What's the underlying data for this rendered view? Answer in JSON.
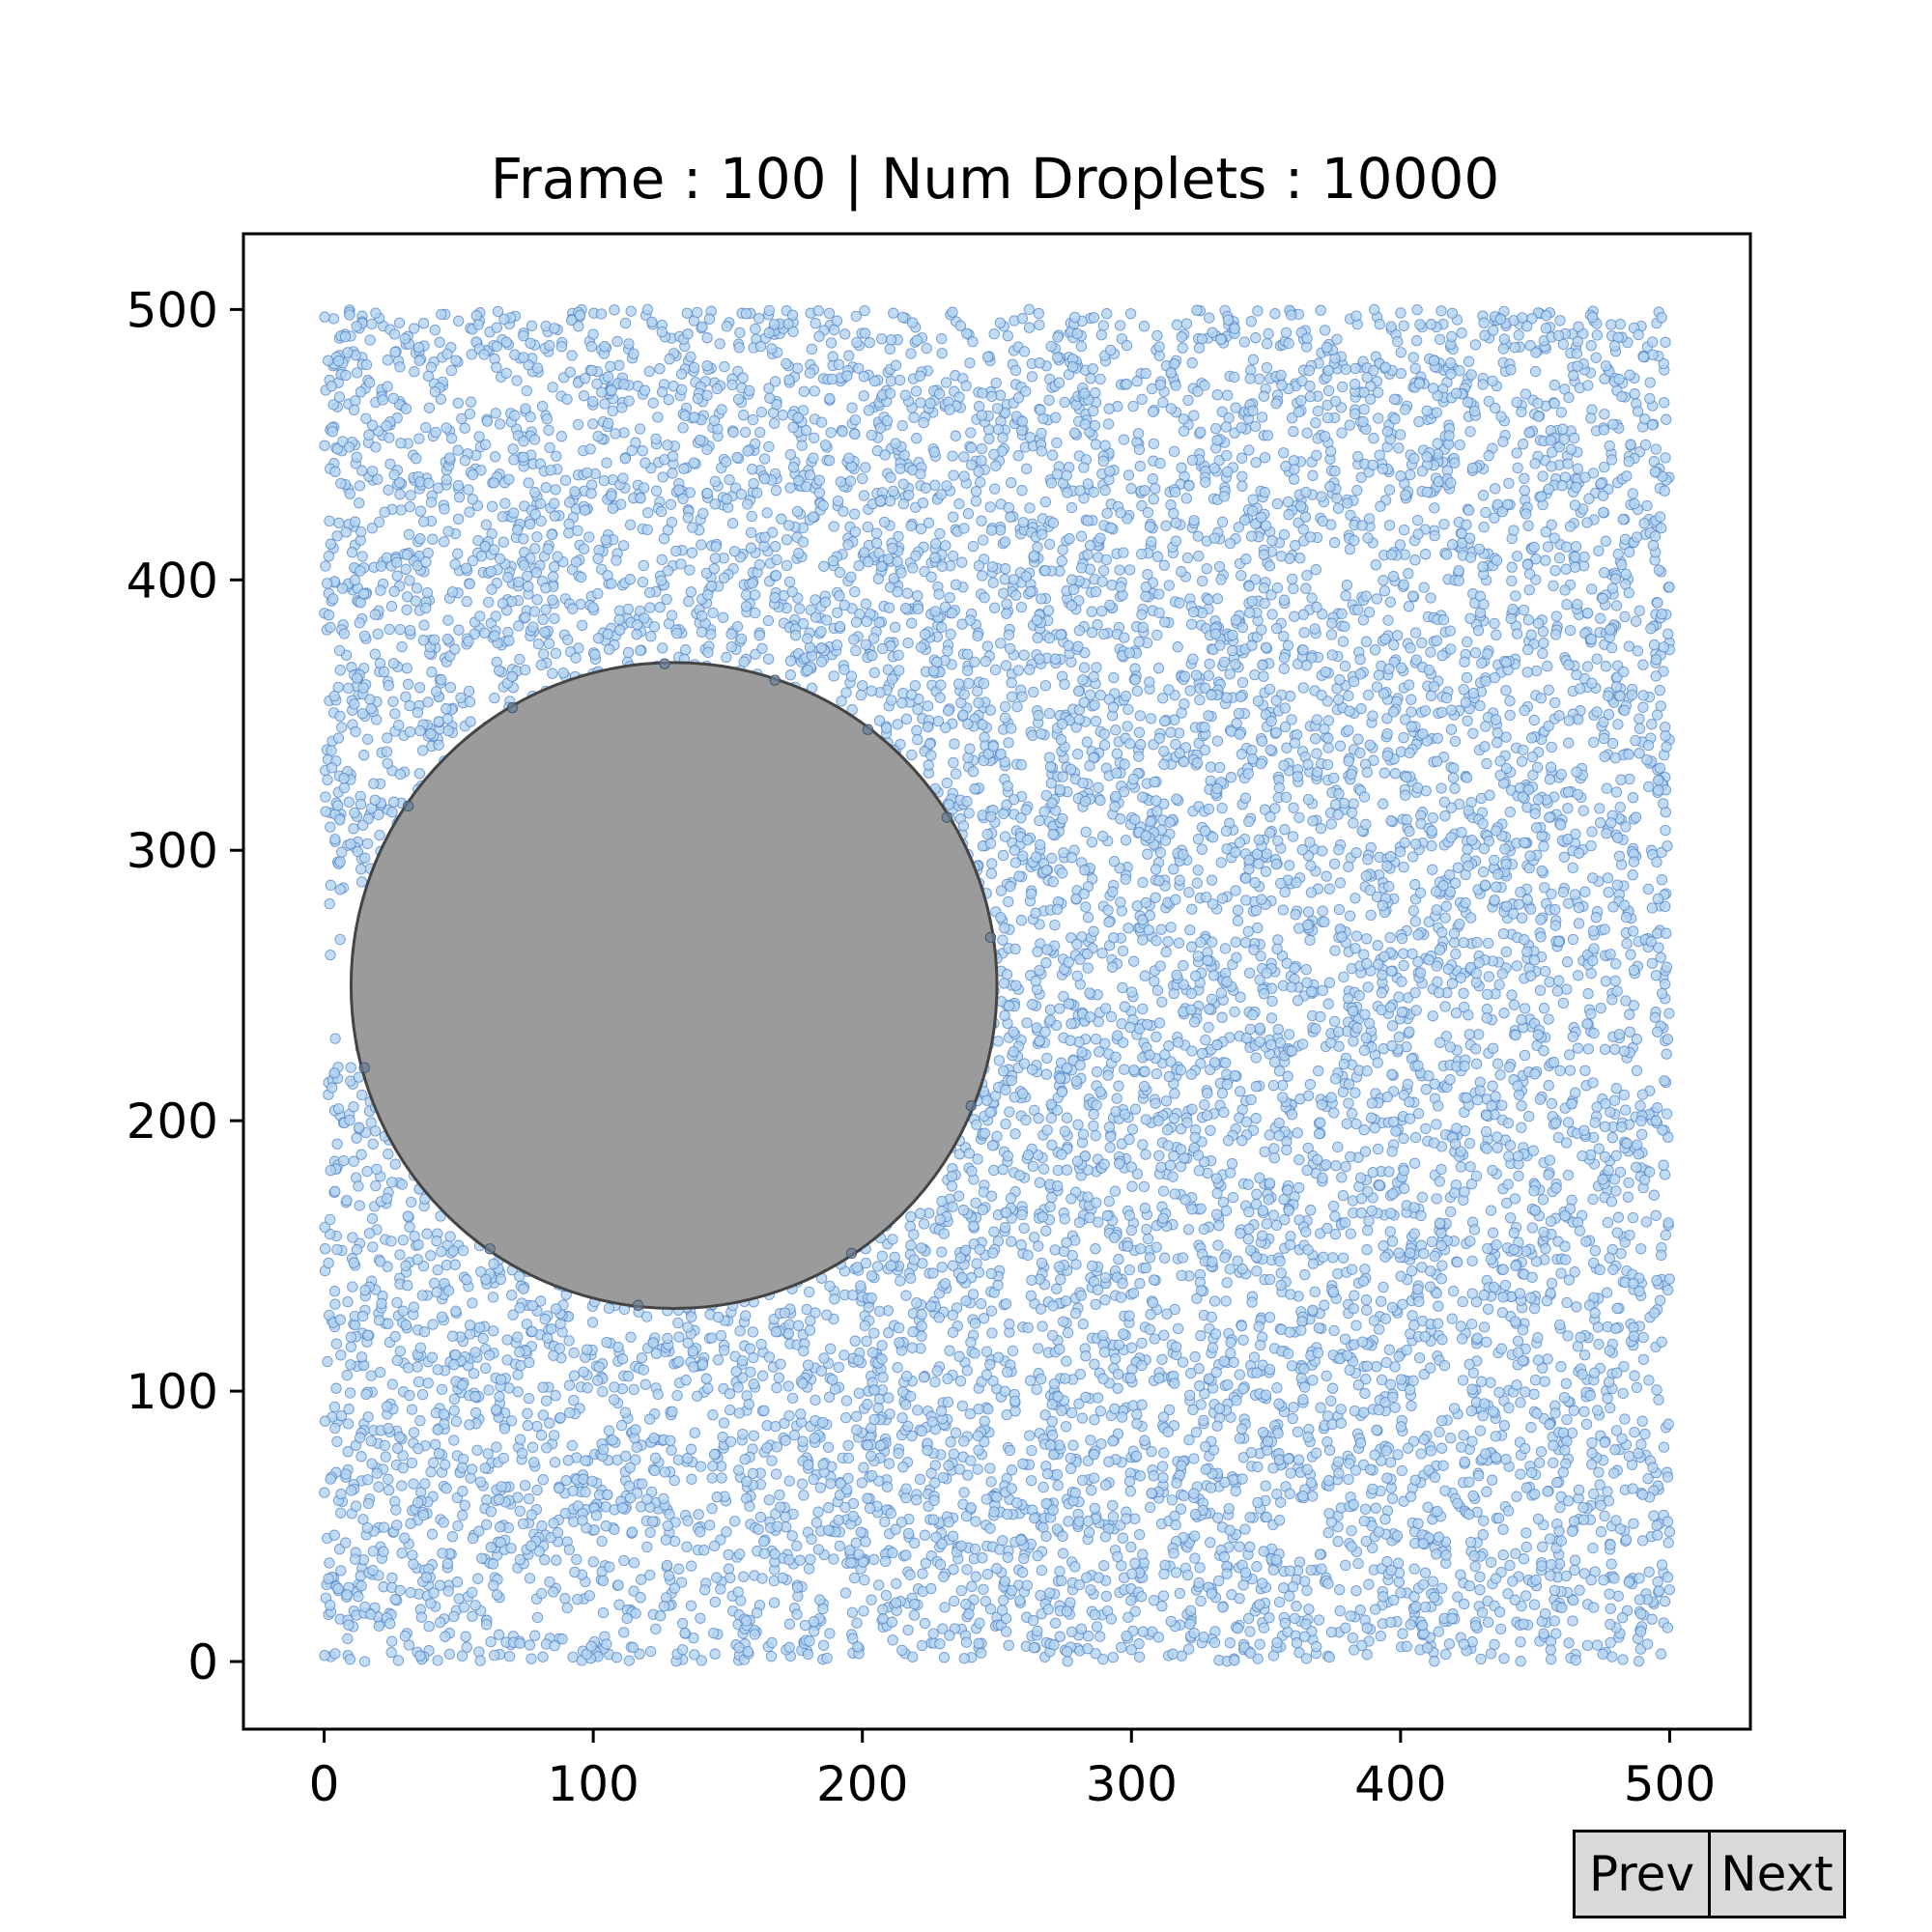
{
  "chart_data": {
    "type": "scatter",
    "title": "Frame : 100 | Num Droplets : 10000",
    "frame": 100,
    "num_droplets": 10000,
    "xlabel": "",
    "ylabel": "",
    "xlim": [
      -30,
      530
    ],
    "ylim": [
      -25,
      528
    ],
    "x_ticks": [
      0,
      100,
      200,
      300,
      400,
      500
    ],
    "y_ticks": [
      0,
      100,
      200,
      300,
      400,
      500
    ],
    "x_tick_labels": [
      "0",
      "100",
      "200",
      "300",
      "400",
      "500"
    ],
    "y_tick_labels": [
      "0",
      "100",
      "200",
      "300",
      "400",
      "500"
    ],
    "grid": false,
    "legend": "none",
    "droplets": {
      "count": 10000,
      "x_range": [
        0,
        500
      ],
      "y_range": [
        0,
        500
      ],
      "fill_color": "#b3d4f0",
      "edge_color": "#4d7ec2"
    },
    "obstacle": {
      "shape": "circle",
      "center_x": 130,
      "center_y": 250,
      "radius": 120,
      "fill_color": "#999999",
      "edge_color": "#444444"
    },
    "sample_points": [
      {
        "x": 262,
        "y": 500
      },
      {
        "x": 497,
        "y": 497
      },
      {
        "x": 470,
        "y": 430
      },
      {
        "x": 412,
        "y": 312
      },
      {
        "x": 250,
        "y": 260
      },
      {
        "x": 249,
        "y": 248
      },
      {
        "x": 230,
        "y": 311
      },
      {
        "x": 310,
        "y": 200
      },
      {
        "x": 455,
        "y": 180
      },
      {
        "x": 382,
        "y": 145
      },
      {
        "x": 500,
        "y": 48
      },
      {
        "x": 495,
        "y": 200
      },
      {
        "x": 270,
        "y": 80
      },
      {
        "x": 120,
        "y": 60
      },
      {
        "x": 60,
        "y": 450
      },
      {
        "x": 20,
        "y": 380
      },
      {
        "x": 10,
        "y": 120
      },
      {
        "x": 160,
        "y": 10
      },
      {
        "x": 410,
        "y": 5
      },
      {
        "x": 350,
        "y": 420
      }
    ]
  },
  "controls": {
    "prev_label": "Prev",
    "next_label": "Next"
  }
}
